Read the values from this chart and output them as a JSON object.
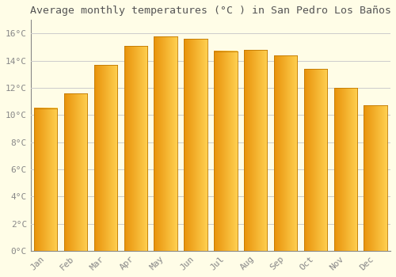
{
  "title": "Average monthly temperatures (°C ) in San Pedro Los Baños",
  "months": [
    "Jan",
    "Feb",
    "Mar",
    "Apr",
    "May",
    "Jun",
    "Jul",
    "Aug",
    "Sep",
    "Oct",
    "Nov",
    "Dec"
  ],
  "values": [
    10.5,
    11.6,
    13.7,
    15.1,
    15.8,
    15.6,
    14.7,
    14.8,
    14.4,
    13.4,
    12.0,
    10.7
  ],
  "bar_color_left": "#E8920A",
  "bar_color_right": "#FFD050",
  "background_color": "#FFFDE7",
  "grid_color": "#CCCCCC",
  "ylim": [
    0,
    17
  ],
  "yticks": [
    0,
    2,
    4,
    6,
    8,
    10,
    12,
    14,
    16
  ],
  "title_fontsize": 9.5,
  "tick_fontsize": 8,
  "title_color": "#555555",
  "tick_color": "#888888",
  "bar_width": 0.78,
  "bar_gap_color": "#FFFFFF"
}
